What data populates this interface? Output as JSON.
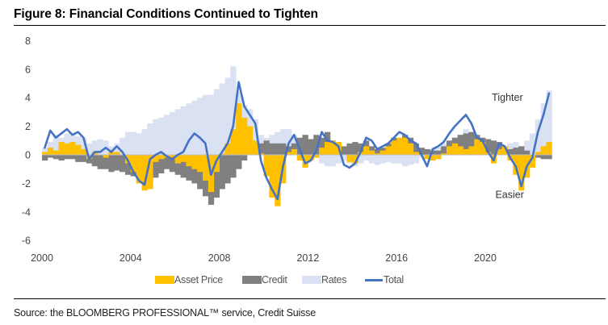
{
  "title": "Figure 8: Financial Conditions Continued to Tighten",
  "source": "Source: the BLOOMBERG PROFESSIONAL™ service, Credit Suisse",
  "chart_data": {
    "type": "area",
    "title": "Figure 8: Financial Conditions Continued to Tighten",
    "xlabel": "",
    "ylabel": "",
    "xlim": [
      2000,
      2022.75
    ],
    "ylim": [
      -6,
      8
    ],
    "yticks": [
      "8",
      "6",
      "4",
      "2",
      "0",
      "-2",
      "-4",
      "-6"
    ],
    "ytick_values": [
      8,
      6,
      4,
      2,
      0,
      -2,
      -4,
      -6
    ],
    "xticks": [
      "2000",
      "2004",
      "2008",
      "2012",
      "2016",
      "2020"
    ],
    "xtick_values": [
      2000,
      2004,
      2008,
      2012,
      2016,
      2020
    ],
    "grid": false,
    "legend_position": "bottom",
    "annotations": [
      {
        "text": "Tighter",
        "x": 2021.0,
        "y": 4.0
      },
      {
        "text": "Easier",
        "x": 2021.1,
        "y": -2.8
      }
    ],
    "colors": {
      "asset_price": "#FFC000",
      "credit": "#808080",
      "rates": "#D9E1F2",
      "total": "#4472C4"
    },
    "x": [
      2000.0,
      2000.25,
      2000.5,
      2000.75,
      2001.0,
      2001.25,
      2001.5,
      2001.75,
      2002.0,
      2002.25,
      2002.5,
      2002.75,
      2003.0,
      2003.25,
      2003.5,
      2003.75,
      2004.0,
      2004.25,
      2004.5,
      2004.75,
      2005.0,
      2005.25,
      2005.5,
      2005.75,
      2006.0,
      2006.25,
      2006.5,
      2006.75,
      2007.0,
      2007.25,
      2007.5,
      2007.75,
      2008.0,
      2008.25,
      2008.5,
      2008.75,
      2009.0,
      2009.25,
      2009.5,
      2009.75,
      2010.0,
      2010.25,
      2010.5,
      2010.75,
      2011.0,
      2011.25,
      2011.5,
      2011.75,
      2012.0,
      2012.25,
      2012.5,
      2012.75,
      2013.0,
      2013.25,
      2013.5,
      2013.75,
      2014.0,
      2014.25,
      2014.5,
      2014.75,
      2015.0,
      2015.25,
      2015.5,
      2015.75,
      2016.0,
      2016.25,
      2016.5,
      2016.75,
      2017.0,
      2017.25,
      2017.5,
      2017.75,
      2018.0,
      2018.25,
      2018.5,
      2018.75,
      2019.0,
      2019.25,
      2019.5,
      2019.75,
      2020.0,
      2020.25,
      2020.5,
      2020.75,
      2021.0,
      2021.25,
      2021.5,
      2021.75,
      2022.0,
      2022.25,
      2022.5,
      2022.75
    ],
    "series": [
      {
        "name": "Asset Price",
        "kind": "area",
        "values": [
          0.2,
          0.5,
          0.3,
          0.9,
          0.8,
          0.9,
          0.7,
          0.4,
          -0.3,
          0.2,
          0.0,
          -0.2,
          0.2,
          0.2,
          0.0,
          -0.6,
          -1.2,
          -2.0,
          -2.5,
          -2.4,
          -0.5,
          -0.3,
          -0.2,
          -0.3,
          -0.6,
          -0.5,
          -0.8,
          -1.0,
          -1.2,
          -1.8,
          -2.6,
          -1.2,
          0.1,
          0.8,
          1.8,
          3.6,
          2.6,
          2.0,
          1.0,
          0.1,
          -1.5,
          -3.0,
          -3.6,
          -2.0,
          0.2,
          0.4,
          -0.4,
          -0.9,
          -0.4,
          -0.2,
          0.5,
          0.9,
          1.0,
          0.9,
          0.0,
          -0.5,
          -0.6,
          0.2,
          0.6,
          0.3,
          0.1,
          0.3,
          0.6,
          1.0,
          1.2,
          1.2,
          0.8,
          0.2,
          0.0,
          -0.3,
          -0.4,
          -0.3,
          0.1,
          0.6,
          0.8,
          0.6,
          0.4,
          0.6,
          1.1,
          0.9,
          0.2,
          -0.6,
          0.4,
          0.6,
          -0.4,
          -1.4,
          -2.5,
          -1.6,
          -0.9,
          0.2,
          0.6,
          0.9
        ]
      },
      {
        "name": "Credit",
        "kind": "area",
        "values": [
          -0.4,
          -0.2,
          -0.3,
          -0.4,
          -0.3,
          -0.3,
          -0.5,
          -0.5,
          -0.6,
          -0.8,
          -1.0,
          -1.0,
          -1.2,
          -1.1,
          -1.2,
          -1.4,
          -1.5,
          -1.5,
          -1.4,
          -1.8,
          -1.6,
          -1.3,
          -1.0,
          -1.2,
          -1.4,
          -1.6,
          -1.8,
          -2.0,
          -2.4,
          -2.9,
          -3.5,
          -3.0,
          -2.4,
          -2.0,
          -1.6,
          -1.0,
          -0.4,
          0.2,
          0.5,
          0.8,
          1.0,
          0.8,
          0.8,
          0.8,
          0.6,
          0.8,
          1.2,
          1.4,
          1.1,
          1.4,
          1.2,
          1.6,
          1.0,
          0.6,
          0.6,
          0.8,
          0.9,
          0.8,
          1.0,
          0.6,
          0.4,
          0.5,
          0.8,
          1.2,
          1.0,
          1.4,
          1.2,
          0.8,
          0.5,
          0.4,
          0.3,
          0.3,
          0.6,
          1.0,
          1.2,
          1.4,
          1.5,
          1.6,
          1.4,
          1.2,
          1.1,
          1.0,
          0.9,
          0.6,
          0.4,
          0.5,
          0.6,
          0.3,
          -0.2,
          -0.2,
          -0.3,
          -0.3
        ]
      },
      {
        "name": "Rates",
        "kind": "area",
        "values": [
          0.5,
          0.9,
          1.4,
          1.2,
          1.5,
          1.4,
          1.3,
          1.2,
          0.8,
          1.0,
          1.1,
          1.0,
          0.6,
          0.8,
          1.2,
          1.6,
          1.6,
          1.5,
          1.8,
          2.2,
          2.5,
          2.6,
          2.8,
          3.0,
          3.2,
          3.4,
          3.6,
          3.8,
          4.0,
          4.2,
          4.2,
          4.6,
          5.0,
          5.4,
          6.2,
          4.4,
          3.5,
          3.2,
          2.5,
          1.4,
          1.2,
          1.4,
          1.6,
          1.8,
          1.8,
          1.4,
          1.0,
          0.6,
          0.6,
          0.2,
          -0.6,
          -0.8,
          -0.8,
          -0.6,
          -0.4,
          -0.6,
          -0.8,
          -0.6,
          -0.4,
          -0.6,
          -0.7,
          -0.6,
          -0.5,
          -0.6,
          -0.6,
          -0.8,
          -0.7,
          -0.6,
          -0.2,
          0.2,
          0.4,
          0.6,
          0.8,
          1.0,
          1.2,
          1.4,
          1.8,
          1.6,
          1.2,
          0.8,
          0.6,
          0.4,
          0.4,
          0.4,
          0.8,
          0.9,
          0.6,
          1.0,
          1.5,
          2.5,
          3.6,
          4.5
        ]
      },
      {
        "name": "Total",
        "kind": "line",
        "values": [
          0.5,
          1.7,
          1.2,
          1.5,
          1.8,
          1.4,
          1.6,
          1.2,
          -0.3,
          0.2,
          0.2,
          0.5,
          0.2,
          0.6,
          0.2,
          -0.4,
          -1.2,
          -1.8,
          -2.1,
          -0.3,
          0.0,
          0.2,
          -0.1,
          -0.3,
          0.0,
          0.2,
          1.0,
          1.5,
          1.2,
          0.8,
          -1.4,
          -0.4,
          0.2,
          0.8,
          2.0,
          5.1,
          3.4,
          2.8,
          2.2,
          -0.4,
          -1.6,
          -2.4,
          -3.1,
          -0.8,
          0.8,
          1.4,
          0.4,
          -0.6,
          -0.4,
          0.3,
          1.6,
          1.0,
          0.9,
          0.6,
          -0.7,
          -0.9,
          -0.6,
          0.2,
          1.2,
          1.0,
          0.4,
          0.6,
          0.8,
          1.2,
          1.6,
          1.4,
          1.0,
          0.8,
          0.0,
          -0.8,
          0.4,
          0.6,
          0.9,
          1.5,
          2.0,
          2.4,
          2.8,
          2.2,
          1.2,
          1.0,
          0.2,
          -0.4,
          0.8,
          0.6,
          -0.2,
          -0.8,
          -2.2,
          -0.8,
          -0.2,
          1.6,
          2.8,
          4.3
        ]
      }
    ]
  },
  "legend": [
    {
      "label": "Asset Price",
      "type": "area"
    },
    {
      "label": "Credit",
      "type": "area"
    },
    {
      "label": "Rates",
      "type": "area"
    },
    {
      "label": "Total",
      "type": "line"
    }
  ]
}
